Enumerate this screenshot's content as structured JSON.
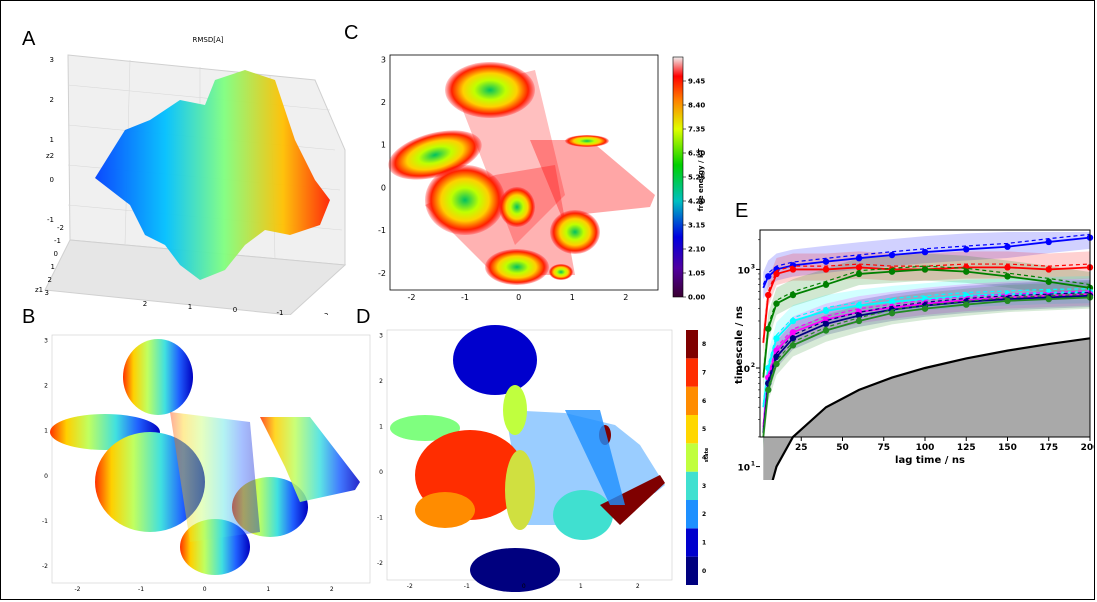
{
  "panels": {
    "a": "A",
    "b": "B",
    "c": "C",
    "d": "D",
    "e": "E"
  },
  "colors": {
    "jet": [
      "#00007f",
      "#0000ff",
      "#0080ff",
      "#00ffff",
      "#80ff80",
      "#ffff00",
      "#ff8000",
      "#ff0000",
      "#7f0000"
    ],
    "state": [
      "#00007f",
      "#0000cd",
      "#1e90ff",
      "#40e0d0",
      "#c0ff3e",
      "#ffd700",
      "#ff8c00",
      "#ff2d00",
      "#7f0000"
    ],
    "e_series": [
      "#0000ff",
      "#ff0000",
      "#008000",
      "#00ffff",
      "#ff00ff",
      "#000080",
      "#228b22",
      "#0000ff"
    ]
  },
  "chart_data": [
    {
      "type": "scatter",
      "panel": "A",
      "title": "RMSD[A]",
      "axes": {
        "z2_ticks": [
          "3",
          "2",
          "1",
          "0",
          "-1"
        ],
        "z1_ticks": [
          "-2",
          "-1",
          "0",
          "1",
          "2",
          "3"
        ],
        "z0_ticks": [
          "2",
          "1",
          "0",
          "-1",
          "-2"
        ],
        "z2_label": "z2",
        "z1_label": "z1",
        "z0_label": "z0"
      }
    },
    {
      "type": "heatmap",
      "panel": "C",
      "xlim": [
        -2.4,
        2.6
      ],
      "ylim": [
        -2.4,
        3.1
      ],
      "xticks": [
        "-2",
        "-1",
        "0",
        "1",
        "2"
      ],
      "yticks": [
        "-2",
        "-1",
        "0",
        "1",
        "2",
        "3"
      ],
      "colorbar_label": "free energy / kT",
      "colorbar_ticks": [
        "0.00",
        "1.05",
        "2.10",
        "3.15",
        "4.20",
        "5.25",
        "6.30",
        "7.35",
        "8.40",
        "9.45"
      ],
      "clim": [
        0,
        10.5
      ]
    },
    {
      "type": "scatter",
      "panel": "B",
      "xlim": [
        -2.4,
        2.6
      ],
      "ylim": [
        -2.4,
        3.1
      ],
      "xticks": [
        "-2",
        "-1",
        "0",
        "1",
        "2"
      ],
      "yticks": [
        "-2",
        "-1",
        "0",
        "1",
        "2",
        "3"
      ]
    },
    {
      "type": "scatter",
      "panel": "D",
      "xlim": [
        -2.4,
        2.6
      ],
      "ylim": [
        -2.4,
        3.1
      ],
      "xticks": [
        "-2",
        "-1",
        "0",
        "1",
        "2"
      ],
      "yticks": [
        "-2",
        "-1",
        "0",
        "1",
        "2",
        "3"
      ],
      "colorbar_label": "state",
      "colorbar_ticks": [
        "0",
        "1",
        "2",
        "3",
        "4",
        "5",
        "6",
        "7",
        "8"
      ]
    },
    {
      "type": "line",
      "panel": "E",
      "xlabel": "lag time / ns",
      "ylabel": "timescale / ns",
      "xlim": [
        0,
        200
      ],
      "ylim_log": [
        1.3,
        3.4
      ],
      "xticks": [
        "25",
        "50",
        "75",
        "100",
        "125",
        "150",
        "175",
        "200"
      ],
      "ytick_values": [
        1,
        2,
        3
      ],
      "yticks": [
        "10",
        "10",
        "10"
      ],
      "ytick_exps": [
        "1",
        "2",
        "3"
      ],
      "x": [
        2,
        5,
        10,
        20,
        40,
        60,
        80,
        100,
        125,
        150,
        175,
        200
      ],
      "series": [
        {
          "values": [
            650,
            850,
            1000,
            1100,
            1200,
            1300,
            1400,
            1500,
            1600,
            1700,
            1900,
            2100
          ]
        },
        {
          "values": [
            180,
            550,
            900,
            1000,
            1000,
            1050,
            1000,
            1000,
            1050,
            1050,
            1000,
            1050
          ]
        },
        {
          "values": [
            80,
            250,
            450,
            550,
            700,
            900,
            950,
            1000,
            950,
            850,
            750,
            650
          ]
        },
        {
          "values": [
            40,
            100,
            200,
            300,
            380,
            430,
            470,
            500,
            540,
            560,
            580,
            590
          ]
        },
        {
          "values": [
            25,
            80,
            150,
            230,
            310,
            370,
            410,
            450,
            490,
            520,
            540,
            560
          ]
        },
        {
          "values": [
            22,
            70,
            130,
            200,
            280,
            340,
            390,
            430,
            470,
            500,
            520,
            540
          ]
        },
        {
          "values": [
            20,
            60,
            110,
            170,
            240,
            300,
            360,
            400,
            440,
            480,
            500,
            520
          ]
        }
      ],
      "lag_line": [
        2,
        5,
        10,
        20,
        40,
        60,
        80,
        100,
        125,
        150,
        175,
        200
      ]
    }
  ]
}
